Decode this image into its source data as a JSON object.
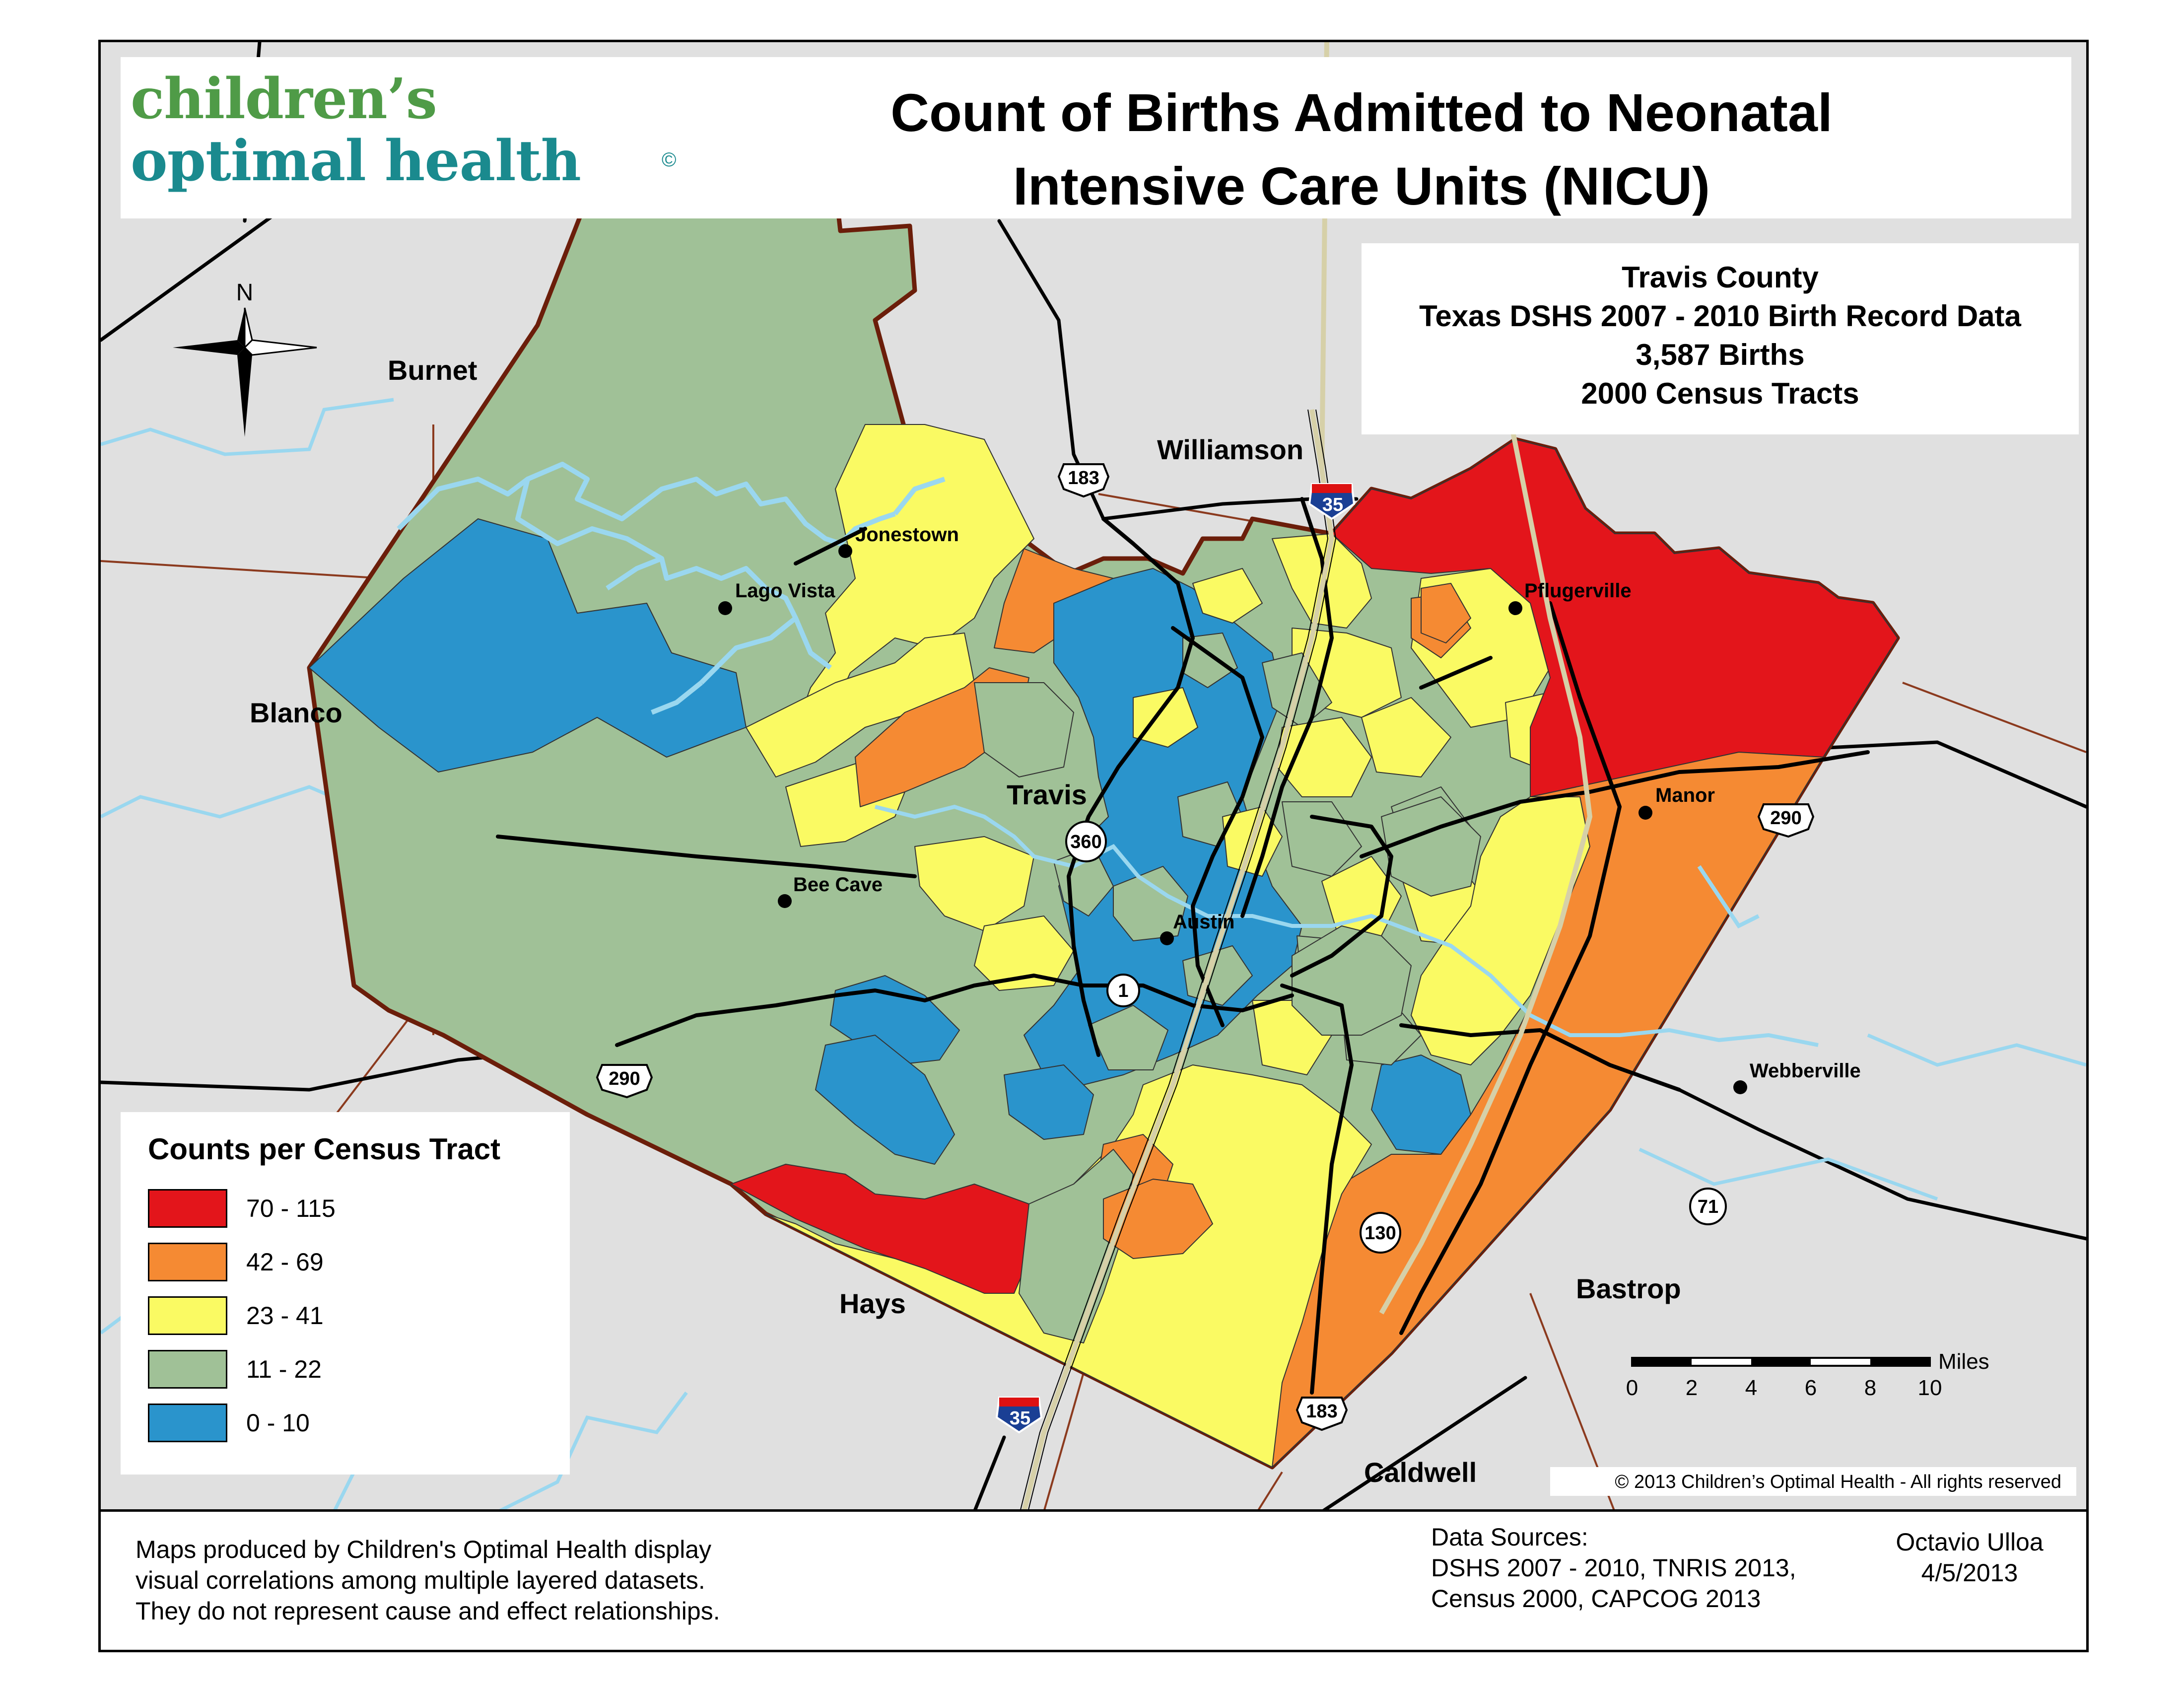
{
  "logo": {
    "line1": "children’s",
    "line2": "optimal health",
    "mark": "©"
  },
  "title": {
    "line1": "Count of Births Admitted to Neonatal",
    "line2": "Intensive Care Units (NICU)"
  },
  "info": {
    "county": "Travis County",
    "source": "Texas DSHS 2007 - 2010 Birth Record Data",
    "births": "3,587 Births",
    "tracts": "2000 Census Tracts"
  },
  "legend": {
    "title": "Counts per Census Tract",
    "classes": [
      {
        "label": "70 - 115",
        "color": "#e3151b"
      },
      {
        "label": "42 - 69",
        "color": "#f58a33"
      },
      {
        "label": "23 - 41",
        "color": "#fafa63"
      },
      {
        "label": "11 - 22",
        "color": "#a0c197"
      },
      {
        "label": "0 - 10",
        "color": "#2a94cc"
      }
    ]
  },
  "map": {
    "counties": [
      "Burnet",
      "Williamson",
      "Blanco",
      "Travis",
      "Hays",
      "Bastrop",
      "Caldwell"
    ],
    "cities": [
      "Jonestown",
      "Lago Vista",
      "Pflugerville",
      "Manor",
      "Bee Cave",
      "Austin",
      "Webberville"
    ],
    "highways": [
      "183",
      "35",
      "290",
      "360",
      "1",
      "130",
      "71",
      "290",
      "35",
      "183"
    ],
    "north": "N",
    "colors": {
      "background": "#e0e0e0",
      "water": "#9ad7ef",
      "county_border": "#6b1e0a",
      "roads": "#000000"
    }
  },
  "scale_bar": {
    "unit": "Miles",
    "ticks": [
      "0",
      "2",
      "4",
      "6",
      "8",
      "10"
    ]
  },
  "copyright": "© 2013 Children’s Optimal Health - All rights reserved",
  "footer": {
    "disclaimer": [
      "Maps produced by Children's Optimal Health display",
      "visual correlations among multiple layered datasets.",
      "They do not represent cause and effect relationships."
    ],
    "sources_title": "Data Sources:",
    "sources": [
      "DSHS 2007 - 2010, TNRIS 2013,",
      "Census 2000, CAPCOG 2013"
    ],
    "author": "Octavio Ulloa",
    "date": "4/5/2013"
  }
}
